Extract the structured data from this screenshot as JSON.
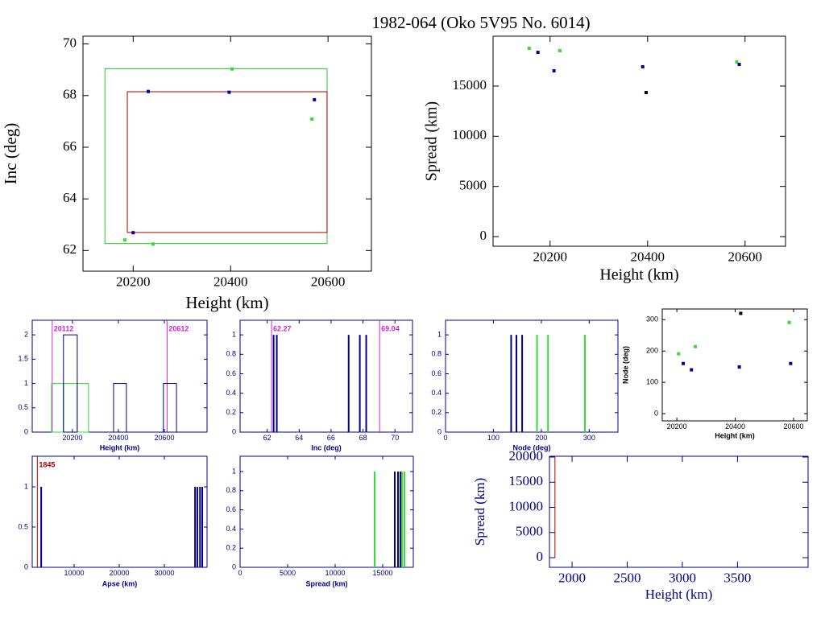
{
  "title": "1982-064 (Oko 5V95 No. 6014)",
  "chart_data": [
    {
      "type": "scatter",
      "x_label": "Height (km)",
      "y_label": "Inc (deg)",
      "xlim": [
        20097,
        20689
      ],
      "ylim": [
        61.2,
        70.3
      ],
      "xticks": [
        20200,
        20400,
        20600
      ],
      "yticks": [
        62,
        64,
        66,
        68,
        70
      ],
      "boxes": [
        {
          "color": "#22cc22",
          "x": [
            20142,
            20598
          ],
          "y": [
            62.27,
            69.04
          ]
        },
        {
          "color": "#aa0000",
          "x": [
            20188,
            20598
          ],
          "y": [
            62.7,
            68.15
          ]
        }
      ],
      "series": [
        {
          "color": "#33dd33",
          "x": [
            20183,
            20241,
            20403,
            20567
          ],
          "values": [
            62.41,
            62.25,
            69.03,
            67.09
          ]
        },
        {
          "color": "#0000aa",
          "x": [
            20200,
            20231,
            20397,
            20572
          ],
          "values": [
            62.69,
            68.16,
            68.13,
            67.84
          ]
        }
      ]
    },
    {
      "type": "scatter",
      "x_label": "Height (km)",
      "y_label": "Spread (km)",
      "xlim": [
        20083,
        20683
      ],
      "ylim": [
        -960,
        19970
      ],
      "xticks": [
        20200,
        20400,
        20600
      ],
      "yticks": [
        0,
        5000,
        10000,
        15000
      ],
      "series": [
        {
          "color": "#33dd33",
          "x": [
            20157,
            20220,
            20583
          ],
          "values": [
            18765,
            18524,
            17400
          ]
        },
        {
          "color": "#0000aa",
          "x": [
            20175,
            20208,
            20390,
            20588
          ],
          "values": [
            18364,
            16520,
            16920,
            17160
          ]
        },
        {
          "color": "#000000",
          "x": [
            20397
          ],
          "values": [
            14354
          ]
        }
      ]
    },
    {
      "type": "histogram",
      "x_label": "Height (km)",
      "xlim": [
        20025,
        20786
      ],
      "ylim": [
        0,
        2.3
      ],
      "xticks": [
        20200,
        20400,
        20600
      ],
      "yticks": [
        0,
        0.5,
        1,
        1.5,
        2
      ],
      "markers": [
        20112,
        20612
      ],
      "marker_color": "#cc22cc",
      "series": [
        {
          "color": "#33dd33",
          "lefts": [
            20109,
            20161,
            20221
          ],
          "rights": [
            20161,
            20221,
            20270
          ],
          "values": [
            1,
            1,
            1
          ]
        },
        {
          "color": "#000088",
          "lefts": [
            20161,
            20379,
            20596
          ],
          "rights": [
            20221,
            20435,
            20653
          ],
          "values": [
            2,
            1,
            1
          ]
        }
      ]
    },
    {
      "type": "spike",
      "x_label": "Inc (deg)",
      "xlim": [
        60.3,
        71.1
      ],
      "ylim": [
        0,
        1.15
      ],
      "xticks": [
        62,
        64,
        66,
        68,
        70
      ],
      "yticks": [
        0,
        0.2,
        0.4,
        0.6,
        0.8,
        1
      ],
      "markers": [
        62.27,
        69.04
      ],
      "marker_color": "#cc22cc",
      "series": [
        {
          "color": "#000088",
          "x": [
            62.4,
            62.6,
            67.1,
            67.8,
            68.2
          ],
          "values": [
            1,
            1,
            1,
            1,
            1
          ]
        }
      ]
    },
    {
      "type": "spike",
      "x_label": "Node (deg)",
      "xlim": [
        0,
        360
      ],
      "ylim": [
        0,
        1.15
      ],
      "xticks": [
        0,
        100,
        200,
        300
      ],
      "yticks": [
        0,
        0.2,
        0.4,
        0.6,
        0.8,
        1
      ],
      "series": [
        {
          "color": "#000088",
          "x": [
            137,
            148,
            160
          ],
          "values": [
            1,
            1,
            1
          ]
        },
        {
          "color": "#33dd33",
          "x": [
            191,
            214,
            291
          ],
          "values": [
            1,
            1,
            1
          ]
        }
      ]
    },
    {
      "type": "scatter",
      "x_label": "Height (km)",
      "y_label": "Node (deg)",
      "xlim": [
        20150,
        20647
      ],
      "ylim": [
        -23,
        334
      ],
      "xticks": [
        20200,
        20400,
        20600
      ],
      "yticks": [
        0,
        100,
        200,
        300
      ],
      "series": [
        {
          "color": "#33dd33",
          "x": [
            20206,
            20263,
            20585
          ],
          "values": [
            191,
            214,
            291
          ]
        },
        {
          "color": "#0000aa",
          "x": [
            20222,
            20250,
            20414,
            20590
          ],
          "values": [
            160,
            140,
            149,
            160
          ]
        },
        {
          "color": "#000000",
          "x": [
            20419
          ],
          "values": [
            320
          ]
        }
      ]
    },
    {
      "type": "spike",
      "x_label": "Apse (km)",
      "xlim": [
        714,
        39460
      ],
      "ylim": [
        0,
        1.38
      ],
      "xticks": [
        10000,
        20000,
        30000
      ],
      "yticks": [
        0,
        0.5,
        1
      ],
      "markers": [
        1845
      ],
      "marker_color": "#aa0000",
      "series": [
        {
          "color": "#000088",
          "x": [
            2700,
            36800,
            37300,
            37900,
            38400
          ],
          "values": [
            1,
            1,
            1,
            1,
            1
          ]
        }
      ]
    },
    {
      "type": "spike",
      "x_label": "Spread (km)",
      "xlim": [
        0,
        18220
      ],
      "ylim": [
        0,
        1.16
      ],
      "xticks": [
        0,
        5000,
        10000,
        15000
      ],
      "yticks": [
        0,
        0.2,
        0.4,
        0.6,
        0.8,
        1
      ],
      "series": [
        {
          "color": "#000088",
          "x": [
            16270,
            16610,
            16860
          ],
          "values": [
            1,
            1,
            1
          ]
        },
        {
          "color": "#33dd33",
          "x": [
            14150,
            17030,
            17290
          ],
          "values": [
            1,
            1,
            1
          ]
        }
      ]
    },
    {
      "type": "line",
      "x_label": "Height (km)",
      "y_label": "Spread (km)",
      "xlim": [
        1795,
        4140
      ],
      "ylim": [
        -1920,
        20160
      ],
      "xticks": [
        2000,
        2500,
        3000,
        3500
      ],
      "yticks": [
        0,
        5000,
        10000,
        15000,
        20000
      ],
      "series": [
        {
          "color": "#aa0000",
          "x": [
            1845,
            1845
          ],
          "values": [
            0,
            20000
          ]
        }
      ]
    }
  ]
}
